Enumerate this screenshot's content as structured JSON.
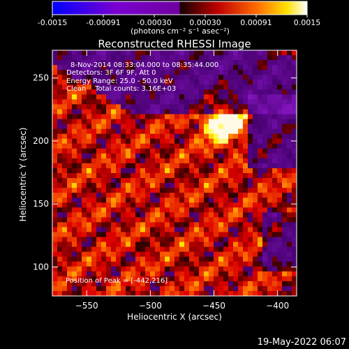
{
  "colorbar": {
    "ticks": [
      "-0.0015",
      "-0.00091",
      "-0.00030",
      "0.00030",
      "0.00091",
      "0.0015"
    ],
    "unit_label": "(photons cm⁻² s⁻¹ asec⁻²)"
  },
  "title": "Reconstructed RHESSI Image",
  "annotations": {
    "time_range": "8-Nov-2014 08:33:04.000 to 08:35:44.000",
    "detectors": "Detectors: 3F 6F 9F, Att 0",
    "energy": "Energy Range: 25.0 - 50.0 keV",
    "clean": "Clean    Total counts: 3.16E+03",
    "peak": "Position of Peak = [-442,216]"
  },
  "axes": {
    "xlabel": "Heliocentric X (arcsec)",
    "ylabel": "Heliocentric Y (arcsec)",
    "xticks": [
      "−550",
      "−500",
      "−450",
      "−400"
    ],
    "yticks": [
      "100",
      "150",
      "200",
      "250"
    ],
    "xlim": [
      -577,
      -385
    ],
    "ylim": [
      77,
      272
    ]
  },
  "peak_position": [
    -442,
    216
  ],
  "footer_date": "19-May-2022 06:07"
}
